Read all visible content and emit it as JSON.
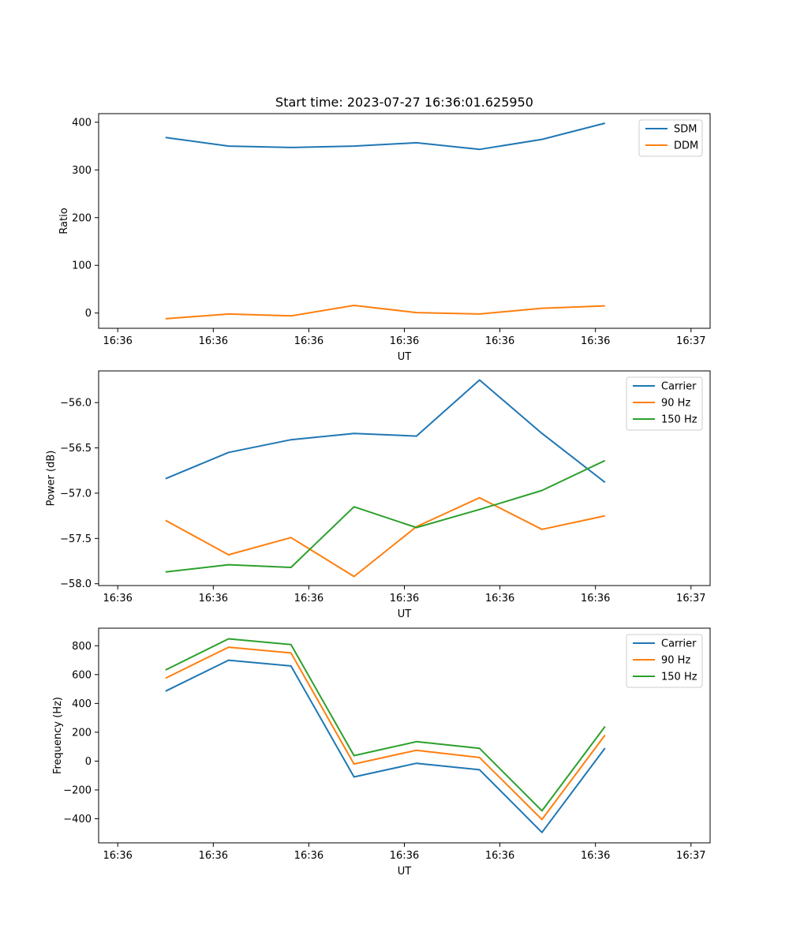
{
  "figure": {
    "title": "Start time: 2023-07-27 16:36:01.625950"
  },
  "chart_data": [
    {
      "type": "line",
      "title": "Start time: 2023-07-27 16:36:01.625950",
      "xlabel": "UT",
      "ylabel": "Ratio",
      "xlim": [
        -0.3,
        9.3
      ],
      "ylim": [
        -32,
        418
      ],
      "x_ticks": [
        {
          "x": 0,
          "label": "16:36"
        },
        {
          "x": 1.5,
          "label": "16:36"
        },
        {
          "x": 3,
          "label": "16:36"
        },
        {
          "x": 4.5,
          "label": "16:36"
        },
        {
          "x": 6,
          "label": "16:36"
        },
        {
          "x": 7.5,
          "label": "16:36"
        },
        {
          "x": 9,
          "label": "16:37"
        }
      ],
      "y_ticks": [
        {
          "y": 0,
          "label": "0"
        },
        {
          "y": 100,
          "label": "100"
        },
        {
          "y": 200,
          "label": "200"
        },
        {
          "y": 300,
          "label": "300"
        },
        {
          "y": 400,
          "label": "400"
        }
      ],
      "x": [
        0.75,
        1.74,
        2.72,
        3.71,
        4.69,
        5.68,
        6.66,
        7.65
      ],
      "series": [
        {
          "name": "SDM",
          "color": "#1f77b4",
          "values": [
            368,
            350,
            347,
            350,
            357,
            343,
            364,
            398
          ]
        },
        {
          "name": "DDM",
          "color": "#ff7f0e",
          "values": [
            -12,
            -2,
            -6,
            16,
            1,
            -2,
            10,
            15
          ]
        }
      ],
      "legend": "top-right"
    },
    {
      "type": "line",
      "title": "",
      "xlabel": "UT",
      "ylabel": "Power (dB)",
      "xlim": [
        -0.3,
        9.3
      ],
      "ylim": [
        -58.02,
        -55.65
      ],
      "x_ticks": [
        {
          "x": 0,
          "label": "16:36"
        },
        {
          "x": 1.5,
          "label": "16:36"
        },
        {
          "x": 3,
          "label": "16:36"
        },
        {
          "x": 4.5,
          "label": "16:36"
        },
        {
          "x": 6,
          "label": "16:36"
        },
        {
          "x": 7.5,
          "label": "16:36"
        },
        {
          "x": 9,
          "label": "16:37"
        }
      ],
      "y_ticks": [
        {
          "y": -58.0,
          "label": "−58.0"
        },
        {
          "y": -57.5,
          "label": "−57.5"
        },
        {
          "y": -57.0,
          "label": "−57.0"
        },
        {
          "y": -56.5,
          "label": "−56.5"
        },
        {
          "y": -56.0,
          "label": "−56.0"
        }
      ],
      "x": [
        0.75,
        1.74,
        2.72,
        3.71,
        4.69,
        5.68,
        6.66,
        7.65
      ],
      "series": [
        {
          "name": "Carrier",
          "color": "#1f77b4",
          "values": [
            -56.84,
            -56.55,
            -56.41,
            -56.34,
            -56.37,
            -55.75,
            -56.34,
            -56.88
          ]
        },
        {
          "name": "90 Hz",
          "color": "#ff7f0e",
          "values": [
            -57.3,
            -57.68,
            -57.49,
            -57.92,
            -57.37,
            -57.05,
            -57.4,
            -57.25
          ]
        },
        {
          "name": "150 Hz",
          "color": "#2ca02c",
          "values": [
            -57.87,
            -57.79,
            -57.82,
            -57.15,
            -57.38,
            -57.18,
            -56.97,
            -56.64
          ]
        }
      ],
      "legend": "top-right"
    },
    {
      "type": "line",
      "title": "",
      "xlabel": "UT",
      "ylabel": "Frequency (Hz)",
      "xlim": [
        -0.3,
        9.3
      ],
      "ylim": [
        -567,
        922
      ],
      "x_ticks": [
        {
          "x": 0,
          "label": "16:36"
        },
        {
          "x": 1.5,
          "label": "16:36"
        },
        {
          "x": 3,
          "label": "16:36"
        },
        {
          "x": 4.5,
          "label": "16:36"
        },
        {
          "x": 6,
          "label": "16:36"
        },
        {
          "x": 7.5,
          "label": "16:36"
        },
        {
          "x": 9,
          "label": "16:37"
        }
      ],
      "y_ticks": [
        {
          "y": -400,
          "label": "−400"
        },
        {
          "y": -200,
          "label": "−200"
        },
        {
          "y": 0,
          "label": "0"
        },
        {
          "y": 200,
          "label": "200"
        },
        {
          "y": 400,
          "label": "400"
        },
        {
          "y": 600,
          "label": "600"
        },
        {
          "y": 800,
          "label": "800"
        }
      ],
      "x": [
        0.75,
        1.74,
        2.72,
        3.71,
        4.69,
        5.68,
        6.66,
        7.65
      ],
      "series": [
        {
          "name": "Carrier",
          "color": "#1f77b4",
          "values": [
            485,
            700,
            660,
            -110,
            -15,
            -60,
            -495,
            90
          ]
        },
        {
          "name": "90 Hz",
          "color": "#ff7f0e",
          "values": [
            575,
            790,
            750,
            -20,
            75,
            25,
            -405,
            180
          ]
        },
        {
          "name": "150 Hz",
          "color": "#2ca02c",
          "values": [
            632,
            848,
            808,
            38,
            135,
            88,
            -345,
            240
          ]
        }
      ],
      "legend": "top-right"
    }
  ]
}
